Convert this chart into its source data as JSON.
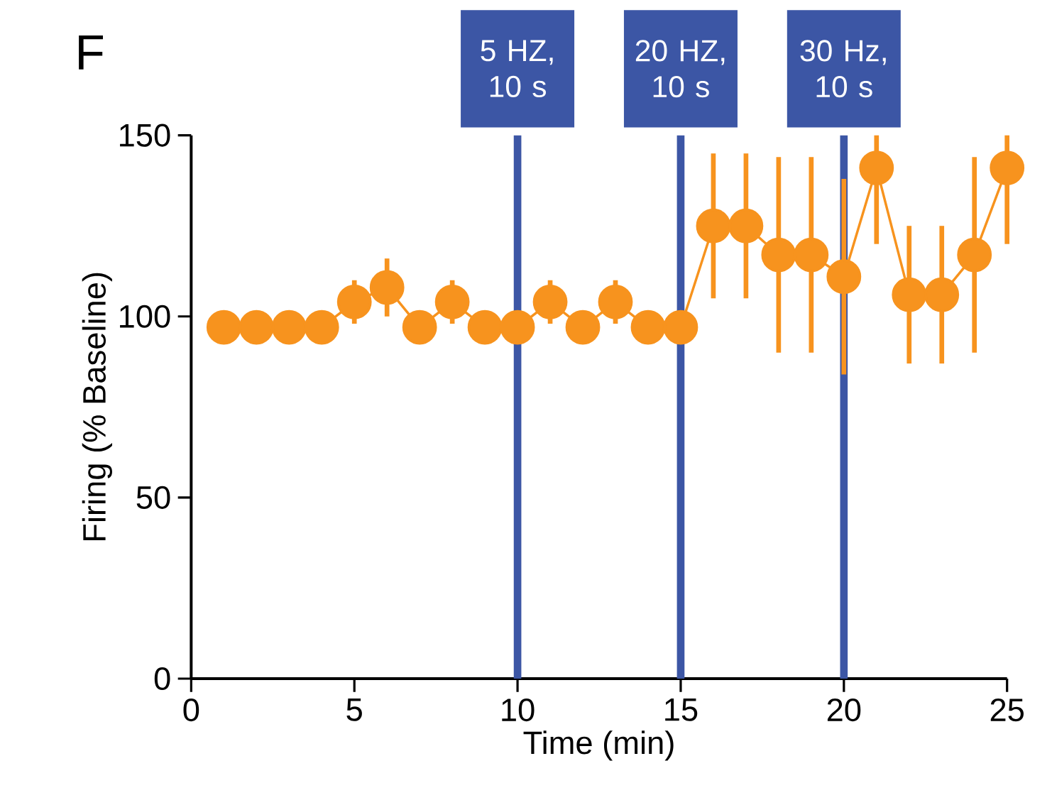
{
  "chart_data": {
    "type": "line",
    "title": "F",
    "xlabel": "Time (min)",
    "ylabel": "Firing (% Baseline)",
    "x": [
      1,
      2,
      3,
      4,
      5,
      6,
      7,
      8,
      9,
      10,
      11,
      12,
      13,
      14,
      15,
      16,
      17,
      18,
      19,
      20,
      21,
      22,
      23,
      24,
      25
    ],
    "series": [
      {
        "color": "#f7931e",
        "values": [
          97,
          97,
          97,
          97,
          104,
          108,
          97,
          104,
          97,
          97,
          104,
          97,
          104,
          97,
          97,
          125,
          125,
          117,
          117,
          111,
          141,
          106,
          106,
          117,
          141
        ],
        "errors": [
          null,
          null,
          null,
          null,
          6,
          8,
          null,
          6,
          null,
          null,
          6,
          null,
          6,
          null,
          null,
          20,
          20,
          27,
          27,
          27,
          [
            120,
            150
          ],
          19,
          19,
          27,
          [
            120,
            150
          ]
        ]
      }
    ],
    "xlim": [
      0,
      25
    ],
    "xticks": [
      0,
      5,
      10,
      15,
      20,
      25
    ],
    "ylim": [
      0,
      150
    ],
    "yticks": [
      0,
      50,
      100,
      150
    ],
    "marker": "circle",
    "ref_lines": [
      {
        "axis": "x",
        "value": 10,
        "label": "5 HZ, 10 s",
        "color": "#3c56a5"
      },
      {
        "axis": "x",
        "value": 15,
        "label": "20 HZ, 10 s",
        "color": "#3c56a5"
      },
      {
        "axis": "x",
        "value": 20,
        "label": "30 Hz, 10 s",
        "color": "#3c56a5"
      }
    ]
  }
}
